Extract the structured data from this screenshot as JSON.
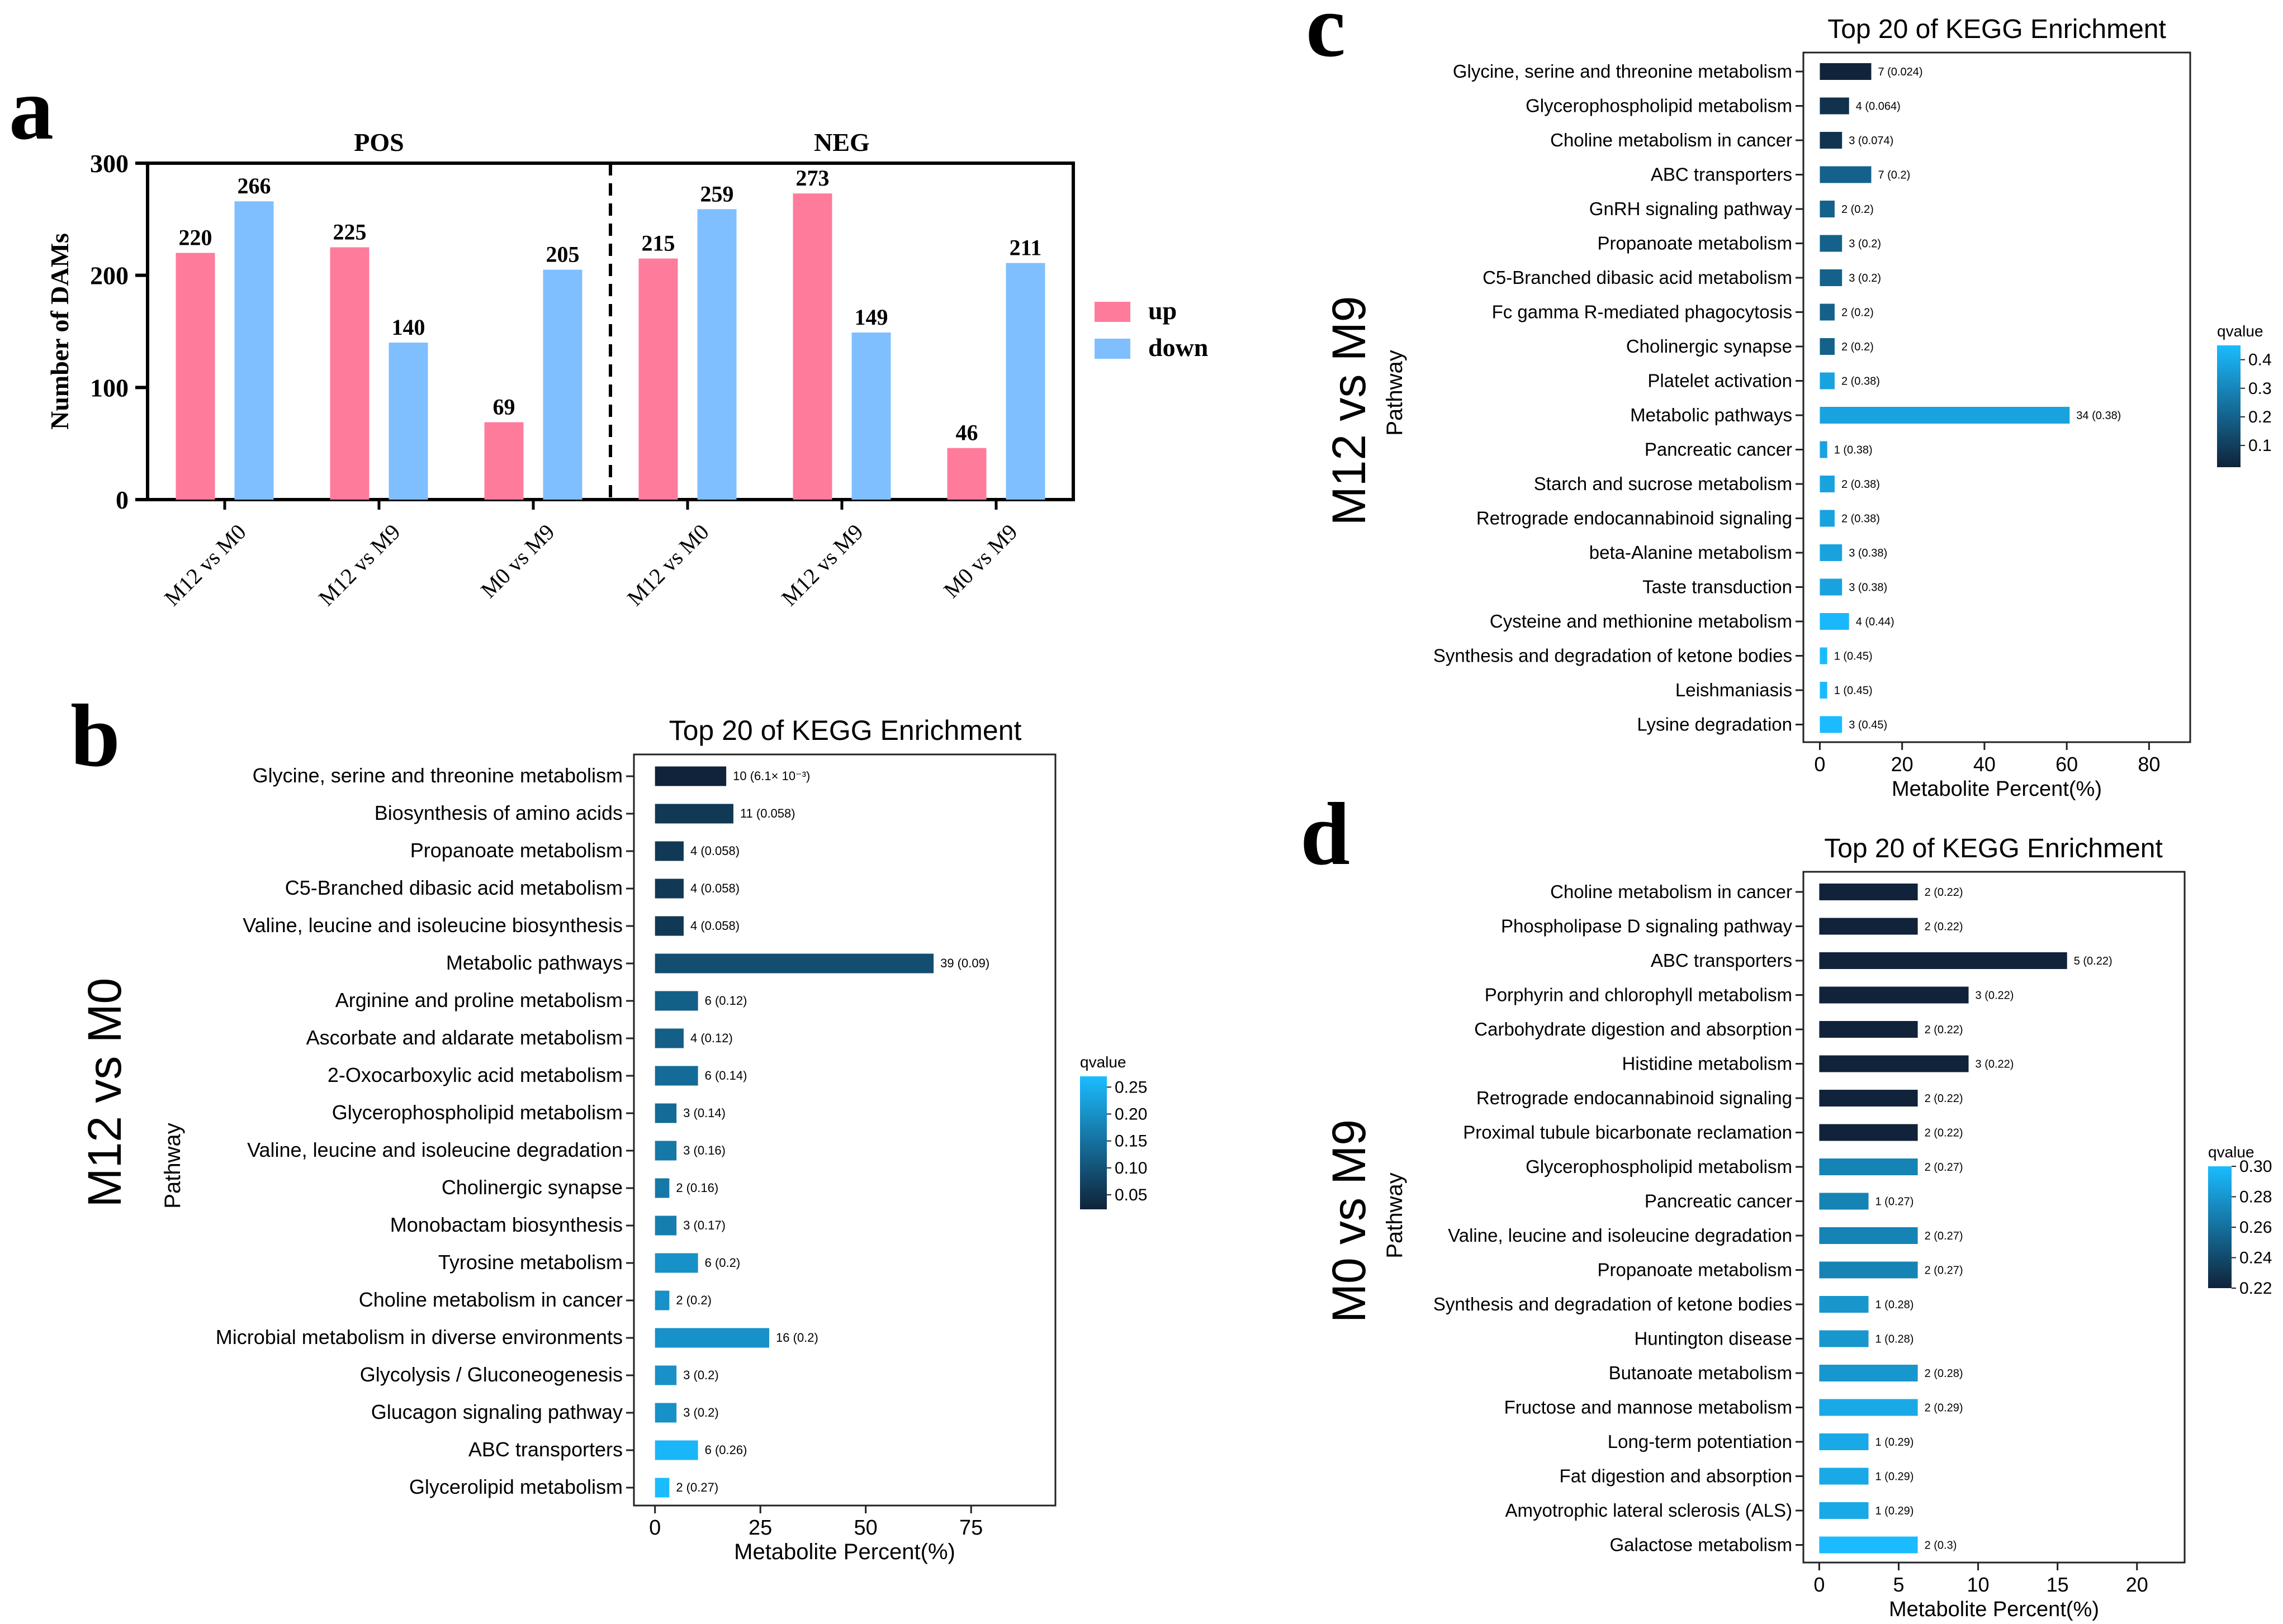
{
  "panels": {
    "a": {
      "letter": "a"
    },
    "b": {
      "letter": "b"
    },
    "c": {
      "letter": "c"
    },
    "d": {
      "letter": "d"
    }
  },
  "chart_data": [
    {
      "id": "a",
      "type": "bar",
      "ylabel": "Number of DAMs",
      "ylim": [
        0,
        300
      ],
      "yticks": [
        0,
        100,
        200,
        300
      ],
      "groups": [
        {
          "label": "POS",
          "categories": [
            "M12 vs M0",
            "M12 vs M9",
            "M0 vs M9"
          ],
          "up": [
            220,
            225,
            69
          ],
          "down": [
            266,
            140,
            205
          ]
        },
        {
          "label": "NEG",
          "categories": [
            "M12 vs M0",
            "M12 vs M9",
            "M0 vs M9"
          ],
          "up": [
            215,
            273,
            46
          ],
          "down": [
            259,
            149,
            211
          ]
        }
      ],
      "legend": [
        {
          "name": "up",
          "color": "#ff7b9c"
        },
        {
          "name": "down",
          "color": "#7fbfff"
        }
      ],
      "legend_position": "right"
    },
    {
      "id": "b",
      "type": "bar",
      "orientation": "horizontal",
      "title": "Top 20 of KEGG Enrichment",
      "xlabel": "Metabolite Percent(%)",
      "ylabel": "Pathway",
      "comparison": "M12 vs M0",
      "xlim": [
        -5,
        95
      ],
      "xticks": [
        0,
        25,
        50,
        75
      ],
      "qlim": [
        0.023,
        0.27
      ],
      "qticks": [
        "0.25",
        "0.20",
        "0.15",
        "0.10",
        "0.05"
      ],
      "qticks_values": [
        0.25,
        0.2,
        0.15,
        0.1,
        0.05
      ],
      "colorbar_label": "qvalue",
      "categories": [
        "Glycine, serine and threonine metabolism",
        "Biosynthesis of amino acids",
        "Propanoate metabolism",
        "C5-Branched dibasic acid metabolism",
        "Valine, leucine and isoleucine biosynthesis",
        "Metabolic pathways",
        "Arginine and proline metabolism",
        "Ascorbate and aldarate metabolism",
        "2-Oxocarboxylic acid metabolism",
        "Glycerophospholipid metabolism",
        "Valine, leucine and isoleucine degradation",
        "Cholinergic synapse",
        "Monobactam biosynthesis",
        "Tyrosine metabolism",
        "Choline metabolism in cancer",
        "Microbial metabolism in diverse environments",
        "Glycolysis / Gluconeogenesis",
        "Glucagon signaling pathway",
        "ABC transporters",
        "Glycerolipid metabolism"
      ],
      "values": [
        16.9,
        18.6,
        6.8,
        6.8,
        6.8,
        66.1,
        10.2,
        6.8,
        10.2,
        5.1,
        5.1,
        3.4,
        5.1,
        10.2,
        3.4,
        27.1,
        5.1,
        5.1,
        10.2,
        3.4
      ],
      "qvalues": [
        0.0061,
        0.058,
        0.058,
        0.058,
        0.058,
        0.09,
        0.12,
        0.12,
        0.14,
        0.14,
        0.16,
        0.16,
        0.17,
        0.2,
        0.2,
        0.2,
        0.2,
        0.2,
        0.26,
        0.27
      ],
      "labels": [
        "10 (6.1× 10⁻³)",
        "11 (0.058)",
        "4 (0.058)",
        "4 (0.058)",
        "4 (0.058)",
        "39 (0.09)",
        "6 (0.12)",
        "4 (0.12)",
        "6 (0.14)",
        "3 (0.14)",
        "3 (0.16)",
        "2 (0.16)",
        "3 (0.17)",
        "6 (0.2)",
        "2 (0.2)",
        "16 (0.2)",
        "3 (0.2)",
        "3 (0.2)",
        "6 (0.26)",
        "2 (0.27)"
      ]
    },
    {
      "id": "c",
      "type": "bar",
      "orientation": "horizontal",
      "title": "Top 20 of KEGG Enrichment",
      "xlabel": "Metabolite Percent(%)",
      "ylabel": "Pathway",
      "comparison": "M12 vs M9",
      "xlim": [
        -4,
        90
      ],
      "xticks": [
        0,
        20,
        40,
        60,
        80
      ],
      "qlim": [
        0.024,
        0.45
      ],
      "qticks": [
        "0.4",
        "0.3",
        "0.2",
        "0.1"
      ],
      "qticks_values": [
        0.4,
        0.3,
        0.2,
        0.1
      ],
      "colorbar_label": "qvalue",
      "categories": [
        "Glycine, serine and threonine metabolism",
        "Glycerophospholipid metabolism",
        "Choline metabolism in cancer",
        "ABC transporters",
        "GnRH signaling pathway",
        "Propanoate metabolism",
        "C5-Branched dibasic acid metabolism",
        "Fc gamma R-mediated phagocytosis",
        "Cholinergic synapse",
        "Platelet activation",
        "Metabolic pathways",
        "Pancreatic cancer",
        "Starch and sucrose metabolism",
        "Retrograde endocannabinoid signaling",
        "beta-Alanine metabolism",
        "Taste transduction",
        "Cysteine and methionine metabolism",
        "Synthesis and degradation of ketone bodies",
        "Leishmaniasis",
        "Lysine degradation"
      ],
      "values": [
        12.5,
        7.1,
        5.4,
        12.5,
        3.6,
        5.4,
        5.4,
        3.6,
        3.6,
        3.6,
        60.7,
        1.8,
        3.6,
        3.6,
        5.4,
        5.4,
        7.1,
        1.8,
        1.8,
        5.4
      ],
      "qvalues": [
        0.024,
        0.064,
        0.074,
        0.2,
        0.2,
        0.2,
        0.2,
        0.2,
        0.2,
        0.38,
        0.38,
        0.38,
        0.38,
        0.38,
        0.38,
        0.38,
        0.44,
        0.45,
        0.45,
        0.45
      ],
      "labels": [
        "7 (0.024)",
        "4 (0.064)",
        "3 (0.074)",
        "7 (0.2)",
        "2 (0.2)",
        "3 (0.2)",
        "3 (0.2)",
        "2 (0.2)",
        "2 (0.2)",
        "2 (0.38)",
        "34 (0.38)",
        "1 (0.38)",
        "2 (0.38)",
        "2 (0.38)",
        "3 (0.38)",
        "3 (0.38)",
        "4 (0.44)",
        "1 (0.45)",
        "1 (0.45)",
        "3 (0.45)"
      ]
    },
    {
      "id": "d",
      "type": "bar",
      "orientation": "horizontal",
      "title": "Top 20 of KEGG Enrichment",
      "xlabel": "Metabolite Percent(%)",
      "ylabel": "Pathway",
      "comparison": "M0 vs M9",
      "xlim": [
        -1,
        23
      ],
      "xticks": [
        0,
        5,
        10,
        15,
        20
      ],
      "qlim": [
        0.22,
        0.3
      ],
      "qticks": [
        "0.30",
        "0.28",
        "0.26",
        "0.24",
        "0.22"
      ],
      "qticks_values": [
        0.3,
        0.28,
        0.26,
        0.24,
        0.22
      ],
      "colorbar_label": "qvalue",
      "categories": [
        "Choline metabolism in cancer",
        "Phospholipase D signaling pathway",
        "ABC transporters",
        "Porphyrin and chlorophyll metabolism",
        "Carbohydrate digestion and absorption",
        "Histidine metabolism",
        "Retrograde endocannabinoid signaling",
        "Proximal tubule bicarbonate reclamation",
        "Glycerophospholipid metabolism",
        "Pancreatic cancer",
        "Valine, leucine and isoleucine degradation",
        "Propanoate metabolism",
        "Synthesis and degradation of ketone bodies",
        "Huntington disease",
        "Butanoate metabolism",
        "Fructose and mannose metabolism",
        "Long-term potentiation",
        "Fat digestion and absorption",
        "Amyotrophic lateral sclerosis (ALS)",
        "Galactose metabolism"
      ],
      "values": [
        6.2,
        6.2,
        15.6,
        9.4,
        6.2,
        9.4,
        6.2,
        6.2,
        6.2,
        3.1,
        6.2,
        6.2,
        3.1,
        3.1,
        6.2,
        6.2,
        3.1,
        3.1,
        3.1,
        6.2
      ],
      "qvalues": [
        0.22,
        0.22,
        0.22,
        0.22,
        0.22,
        0.22,
        0.22,
        0.22,
        0.27,
        0.27,
        0.27,
        0.27,
        0.28,
        0.28,
        0.28,
        0.29,
        0.29,
        0.29,
        0.29,
        0.3
      ],
      "labels": [
        "2 (0.22)",
        "2 (0.22)",
        "5 (0.22)",
        "3 (0.22)",
        "2 (0.22)",
        "3 (0.22)",
        "2 (0.22)",
        "2 (0.22)",
        "2 (0.27)",
        "1 (0.27)",
        "2 (0.27)",
        "2 (0.27)",
        "1 (0.28)",
        "1 (0.28)",
        "2 (0.28)",
        "2 (0.29)",
        "1 (0.29)",
        "1 (0.29)",
        "1 (0.29)",
        "2 (0.3)"
      ]
    }
  ]
}
